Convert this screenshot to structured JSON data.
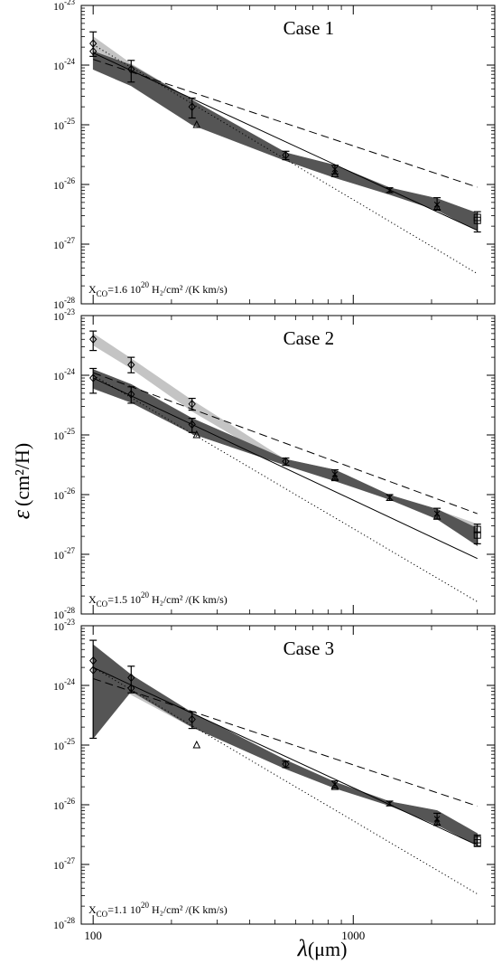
{
  "figure": {
    "ylabel_symbol": "ε",
    "ylabel_unit": "(cm²/H)",
    "xlabel_symbol": "λ",
    "xlabel_unit": "(μm)"
  },
  "chart_data": [
    {
      "type": "line",
      "title": "Case 1",
      "annotation": {
        "prefix": "X",
        "sub": "CO",
        "mid": "=1.6 10",
        "exp": "20",
        "tail": " H₂/cm² /(K km/s)"
      },
      "xscale": "log",
      "yscale": "log",
      "xlim": [
        90,
        3500
      ],
      "ylim": [
        1e-28,
        1e-23
      ],
      "xticks": [
        {
          "v": 100,
          "label": "100"
        },
        {
          "v": 1000,
          "label": "1000"
        }
      ],
      "yticks": [
        {
          "v": 1e-23,
          "exp": "-23"
        },
        {
          "v": 1e-24,
          "exp": "-24"
        },
        {
          "v": 1e-25,
          "exp": "-25"
        },
        {
          "v": 1e-26,
          "exp": "-26"
        },
        {
          "v": 1e-27,
          "exp": "-27"
        },
        {
          "v": 1e-28,
          "exp": "-28"
        }
      ],
      "bands": [
        {
          "shade": "light",
          "x": [
            100,
            140,
            240,
            550,
            850,
            1380,
            2100,
            3000
          ],
          "lower": [
            1.3e-24,
            6e-25,
            1.6e-25,
            2.6e-26,
            1.5e-26,
            7.2e-27,
            4.3e-27,
            2.2e-27
          ],
          "upper": [
            3e-24,
            1.05e-24,
            2.6e-25,
            3.4e-26,
            2e-26,
            8.5e-27,
            4.8e-27,
            2.5e-27
          ]
        },
        {
          "shade": "dark",
          "x": [
            100,
            140,
            240,
            550,
            850,
            1380,
            2100,
            3000
          ],
          "lower": [
            8.5e-25,
            4.5e-25,
            1e-25,
            2.5e-26,
            1.3e-26,
            6.8e-27,
            3.7e-27,
            1.7e-27
          ],
          "upper": [
            1.7e-24,
            1e-24,
            2.6e-25,
            3.4e-26,
            2.1e-26,
            8.8e-27,
            5.8e-27,
            3.3e-27
          ]
        }
      ],
      "lines": [
        {
          "style": "dashed",
          "x": [
            100,
            3000
          ],
          "y": [
            1.25e-24,
            9e-27
          ]
        },
        {
          "style": "solid",
          "x": [
            100,
            3000
          ],
          "y": [
            1.6e-24,
            1.7e-27
          ]
        },
        {
          "style": "dotted",
          "x": [
            100,
            3000
          ],
          "y": [
            2.2e-24,
            3.2e-28
          ]
        }
      ],
      "points": [
        {
          "marker": "diamond",
          "x": 100,
          "y": 2.3e-24,
          "err": [
            1.4e-24,
            3.6e-24
          ]
        },
        {
          "marker": "diamond",
          "x": 100,
          "y": 1.7e-24
        },
        {
          "marker": "diamond",
          "x": 140,
          "y": 8.5e-25,
          "err": [
            5.2e-25,
            1.2e-24
          ]
        },
        {
          "marker": "diamond",
          "x": 240,
          "y": 2e-25,
          "err": [
            1.3e-25,
            2.8e-25
          ]
        },
        {
          "marker": "triangle",
          "x": 250,
          "y": 1e-25
        },
        {
          "marker": "diamond",
          "x": 550,
          "y": 3.1e-26,
          "err": [
            2.6e-26,
            3.6e-26
          ]
        },
        {
          "marker": "triangle",
          "x": 850,
          "y": 1.5e-26
        },
        {
          "marker": "cross",
          "x": 850,
          "y": 1.8e-26,
          "err": [
            1.5e-26,
            2.1e-26
          ]
        },
        {
          "marker": "cross",
          "x": 1380,
          "y": 8e-27,
          "err": [
            7.3e-27,
            8.8e-27
          ]
        },
        {
          "marker": "triangle",
          "x": 2100,
          "y": 4.1e-27
        },
        {
          "marker": "cross",
          "x": 2100,
          "y": 4.6e-27,
          "err": [
            3.8e-27,
            6e-27
          ]
        },
        {
          "marker": "square",
          "x": 3000,
          "y": 2.8e-27,
          "err": [
            1.6e-27,
            3.5e-27
          ]
        },
        {
          "marker": "square",
          "x": 3000,
          "y": 2.5e-27
        }
      ]
    },
    {
      "type": "line",
      "title": "Case 2",
      "annotation": {
        "prefix": "X",
        "sub": "CO",
        "mid": "=1.5 10",
        "exp": "20",
        "tail": " H₂/cm² /(K km/s)"
      },
      "xscale": "log",
      "yscale": "log",
      "xlim": [
        90,
        3500
      ],
      "ylim": [
        1e-28,
        1e-23
      ],
      "xticks": [
        {
          "v": 100,
          "label": "100"
        },
        {
          "v": 1000,
          "label": "1000"
        }
      ],
      "yticks": [
        {
          "v": 1e-23,
          "exp": "-23"
        },
        {
          "v": 1e-24,
          "exp": "-24"
        },
        {
          "v": 1e-25,
          "exp": "-25"
        },
        {
          "v": 1e-26,
          "exp": "-26"
        },
        {
          "v": 1e-27,
          "exp": "-27"
        },
        {
          "v": 1e-28,
          "exp": "-28"
        }
      ],
      "bands": [
        {
          "shade": "light",
          "x": [
            100,
            140,
            240,
            550,
            850,
            1380,
            2100,
            3000
          ],
          "lower": [
            3.2e-24,
            1.3e-24,
            2.5e-25,
            3e-26,
            1.9e-26,
            8.2e-27,
            4.3e-27,
            2.6e-27
          ],
          "upper": [
            5e-24,
            1.9e-24,
            3.8e-25,
            3.8e-26,
            2.4e-26,
            9.8e-27,
            5.5e-27,
            3.2e-27
          ]
        },
        {
          "shade": "dark",
          "x": [
            100,
            140,
            240,
            550,
            850,
            1380,
            2100,
            3000
          ],
          "lower": [
            6e-25,
            3.5e-25,
            1.05e-25,
            3.1e-26,
            1.7e-26,
            8.3e-27,
            3.9e-27,
            1.4e-27
          ],
          "upper": [
            1.25e-24,
            7e-25,
            1.9e-25,
            3.9e-26,
            2.6e-26,
            9.8e-27,
            5.7e-27,
            2.7e-27
          ]
        }
      ],
      "lines": [
        {
          "style": "dashed",
          "x": [
            100,
            3000
          ],
          "y": [
            1.1e-24,
            4.8e-27
          ]
        },
        {
          "style": "solid",
          "x": [
            100,
            3000
          ],
          "y": [
            9e-25,
            8.5e-28
          ]
        },
        {
          "style": "dotted",
          "x": [
            100,
            3000
          ],
          "y": [
            1e-24,
            1.6e-28
          ]
        }
      ],
      "points": [
        {
          "marker": "diamond",
          "x": 100,
          "y": 4e-24,
          "err": [
            2.6e-24,
            5.5e-24
          ]
        },
        {
          "marker": "diamond",
          "x": 100,
          "y": 9e-25,
          "err": [
            5e-25,
            1.3e-24
          ]
        },
        {
          "marker": "diamond",
          "x": 140,
          "y": 1.5e-24,
          "err": [
            1.1e-24,
            2e-24
          ]
        },
        {
          "marker": "diamond",
          "x": 140,
          "y": 4.8e-25,
          "err": [
            3.4e-25,
            6.4e-25
          ]
        },
        {
          "marker": "diamond",
          "x": 240,
          "y": 3.3e-25,
          "err": [
            2.6e-25,
            4.1e-25
          ]
        },
        {
          "marker": "diamond",
          "x": 240,
          "y": 1.5e-25,
          "err": [
            1.1e-25,
            1.9e-25
          ]
        },
        {
          "marker": "triangle",
          "x": 250,
          "y": 1e-25
        },
        {
          "marker": "diamond",
          "x": 550,
          "y": 3.6e-26,
          "err": [
            3.1e-26,
            4.1e-26
          ]
        },
        {
          "marker": "triangle",
          "x": 850,
          "y": 1.9e-26
        },
        {
          "marker": "cross",
          "x": 850,
          "y": 2.2e-26,
          "err": [
            1.8e-26,
            2.6e-26
          ]
        },
        {
          "marker": "cross",
          "x": 1380,
          "y": 9e-27,
          "err": [
            8e-27,
            1e-26
          ]
        },
        {
          "marker": "triangle",
          "x": 2100,
          "y": 4.3e-27
        },
        {
          "marker": "cross",
          "x": 2100,
          "y": 4.8e-27,
          "err": [
            3.9e-27,
            5.9e-27
          ]
        },
        {
          "marker": "square",
          "x": 3000,
          "y": 2.6e-27,
          "err": [
            1.5e-27,
            3.2e-27
          ]
        },
        {
          "marker": "square",
          "x": 3000,
          "y": 2.1e-27
        }
      ]
    },
    {
      "type": "line",
      "title": "Case 3",
      "annotation": {
        "prefix": "X",
        "sub": "CO",
        "mid": "=1.1 10",
        "exp": "20",
        "tail": " H₂/cm² /(K km/s)"
      },
      "xscale": "log",
      "yscale": "log",
      "xlim": [
        90,
        3500
      ],
      "ylim": [
        1e-28,
        1e-23
      ],
      "xticks": [
        {
          "v": 100,
          "label": "100"
        },
        {
          "v": 1000,
          "label": "1000"
        }
      ],
      "yticks": [
        {
          "v": 1e-23,
          "exp": "-23"
        },
        {
          "v": 1e-24,
          "exp": "-24"
        },
        {
          "v": 1e-25,
          "exp": "-25"
        },
        {
          "v": 1e-26,
          "exp": "-26"
        },
        {
          "v": 1e-27,
          "exp": "-27"
        },
        {
          "v": 1e-28,
          "exp": "-28"
        }
      ],
      "bands": [
        {
          "shade": "light",
          "x": [
            100,
            140,
            240,
            550,
            850,
            1380,
            2100,
            3000
          ],
          "lower": [
            1.3e-24,
            7e-25,
            2e-25,
            4.2e-26,
            1.9e-26,
            9.6e-27,
            4.8e-27,
            2.3e-27
          ],
          "upper": [
            2.6e-24,
            1.3e-24,
            3.1e-25,
            5.4e-26,
            2.3e-26,
            1.1e-26,
            5.8e-27,
            2.8e-27
          ]
        },
        {
          "shade": "dark",
          "x": [
            100,
            140,
            240,
            550,
            850,
            1380,
            2100,
            3000
          ],
          "lower": [
            1.3e-25,
            8e-25,
            2e-25,
            4e-26,
            1.9e-26,
            9.7e-27,
            4.6e-27,
            2.1e-27
          ],
          "upper": [
            4.8e-24,
            1.5e-24,
            3.5e-25,
            5.6e-26,
            2.4e-26,
            1.13e-26,
            8e-27,
            3.3e-27
          ]
        }
      ],
      "lines": [
        {
          "style": "dashed",
          "x": [
            100,
            3000
          ],
          "y": [
            1.3e-24,
            9.5e-27
          ]
        },
        {
          "style": "solid",
          "x": [
            100,
            3000
          ],
          "y": [
            2e-24,
            2.1e-27
          ]
        },
        {
          "style": "dotted",
          "x": [
            100,
            3000
          ],
          "y": [
            2e-24,
            3.2e-28
          ]
        }
      ],
      "points": [
        {
          "marker": "diamond",
          "x": 100,
          "y": 2.6e-24,
          "err": [
            1.3e-25,
            5.7e-24
          ]
        },
        {
          "marker": "diamond",
          "x": 100,
          "y": 1.8e-24
        },
        {
          "marker": "diamond",
          "x": 140,
          "y": 1.35e-24,
          "err": [
            7.5e-25,
            2.1e-24
          ]
        },
        {
          "marker": "diamond",
          "x": 140,
          "y": 9e-25
        },
        {
          "marker": "diamond",
          "x": 240,
          "y": 2.7e-25,
          "err": [
            1.9e-25,
            3.6e-25
          ]
        },
        {
          "marker": "triangle",
          "x": 250,
          "y": 1e-25
        },
        {
          "marker": "diamond",
          "x": 550,
          "y": 4.8e-26,
          "err": [
            4.2e-26,
            5.4e-26
          ]
        },
        {
          "marker": "triangle",
          "x": 850,
          "y": 2e-26
        },
        {
          "marker": "cross",
          "x": 850,
          "y": 2.2e-26,
          "err": [
            1.9e-26,
            2.5e-26
          ]
        },
        {
          "marker": "cross",
          "x": 1380,
          "y": 1.05e-26,
          "err": [
            9.6e-27,
            1.15e-26
          ]
        },
        {
          "marker": "triangle",
          "x": 2100,
          "y": 5e-27
        },
        {
          "marker": "cross",
          "x": 2100,
          "y": 5.8e-27,
          "err": [
            4.6e-27,
            7.2e-27
          ]
        },
        {
          "marker": "square",
          "x": 3000,
          "y": 2.6e-27,
          "err": [
            2e-27,
            3.1e-27
          ]
        },
        {
          "marker": "square",
          "x": 3000,
          "y": 2.3e-27
        }
      ]
    }
  ]
}
